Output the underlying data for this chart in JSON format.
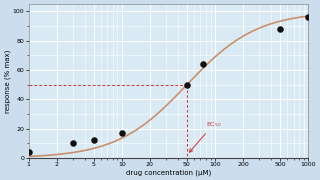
{
  "title": "",
  "xlabel": "drug concentration (μM)",
  "ylabel": "response (% max)",
  "bg_color": "#ccdded",
  "plot_bg_color": "#daeaf5",
  "grid_major_color": "#ffffff",
  "grid_minor_color": "#ffffff",
  "curve_color": "#c8906a",
  "dot_color": "#111111",
  "data_x": [
    1,
    3,
    5,
    10,
    50,
    75,
    500,
    1000
  ],
  "data_y": [
    4,
    10,
    12,
    17,
    50,
    64,
    88,
    96
  ],
  "ec50_x": 50,
  "ec50_y": 50,
  "xlim_log": [
    0,
    3
  ],
  "ylim": [
    0,
    105
  ],
  "Hill_Emax": 100,
  "Hill_EC50": 50,
  "Hill_n": 1.15,
  "dashed_color": "#cc3333",
  "ec50_label": "EC$_{50}$",
  "yticks": [
    0,
    20,
    40,
    60,
    80,
    100
  ],
  "xticks": [
    1,
    2,
    5,
    10,
    20,
    50,
    100,
    200,
    500,
    1000
  ]
}
